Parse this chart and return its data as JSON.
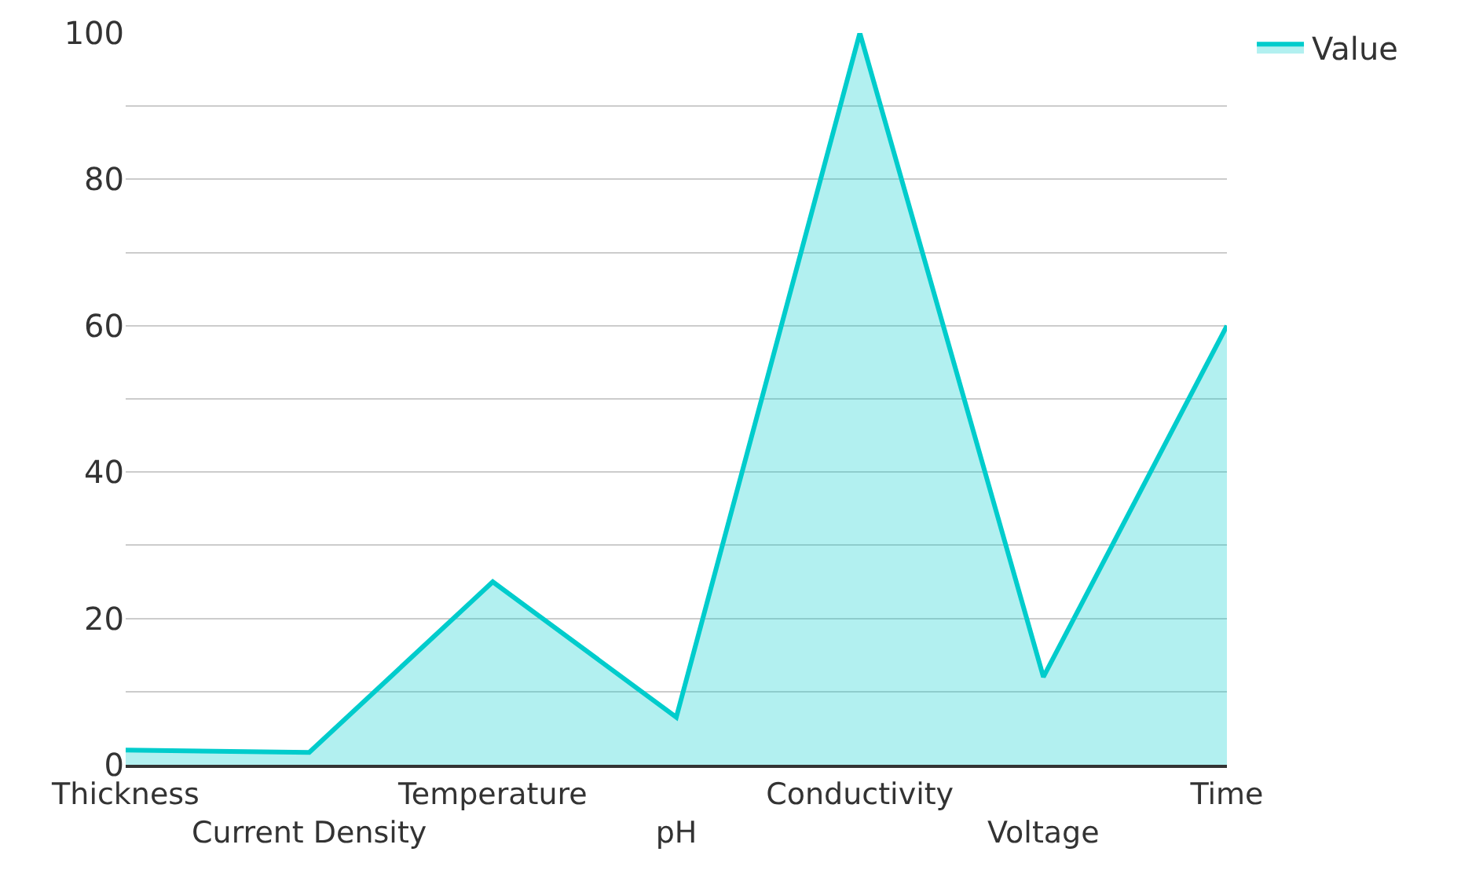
{
  "chart_data": {
    "type": "area",
    "categories": [
      "Thickness",
      "Current Density",
      "Temperature",
      "pH",
      "Conductivity",
      "Voltage",
      "Time"
    ],
    "series": [
      {
        "name": "Value",
        "color": "#00cccc",
        "values": [
          2,
          1.7,
          25,
          6.5,
          100,
          12,
          60
        ]
      }
    ],
    "ylim": [
      0,
      100
    ],
    "yticks": [
      0,
      {
        "value": 10,
        "label": null
      },
      20,
      {
        "value": 30,
        "label": null
      },
      40,
      {
        "value": 50,
        "label": null
      },
      60,
      {
        "value": 70,
        "label": null
      },
      80,
      {
        "value": 90,
        "label": null
      },
      100
    ],
    "grid": "y",
    "legend": "top right",
    "marker": "none",
    "line_style": "solid"
  }
}
